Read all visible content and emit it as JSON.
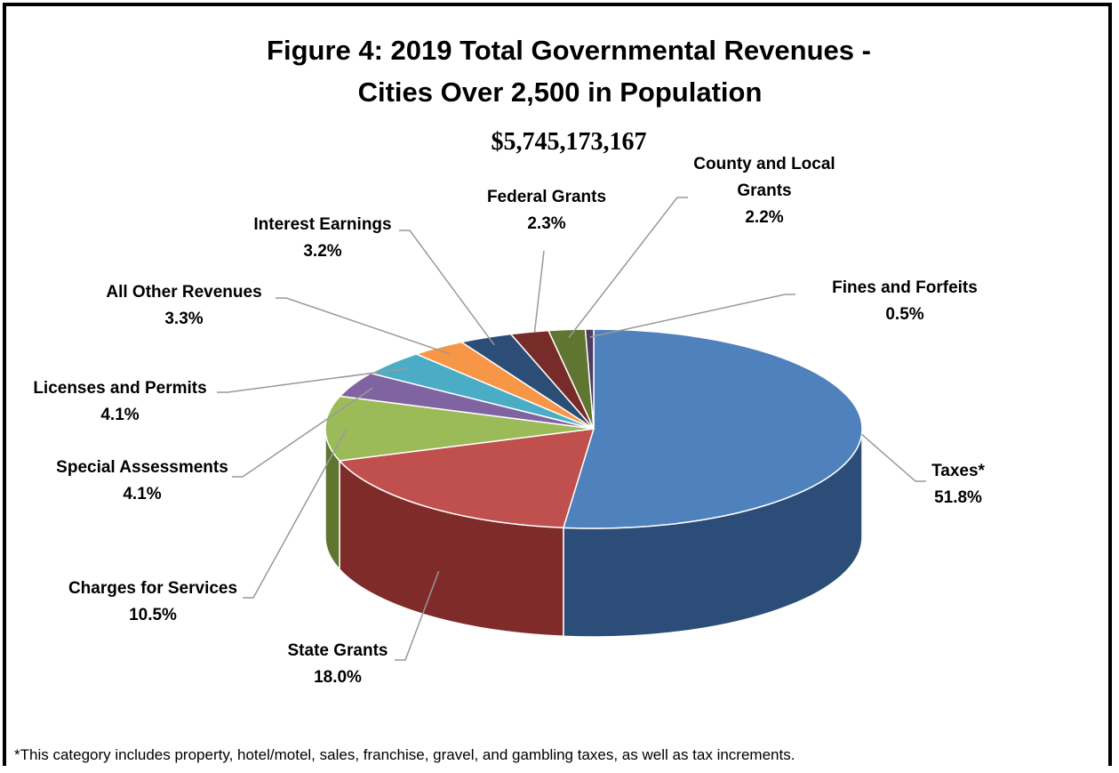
{
  "chart_data": {
    "type": "pie",
    "title_line1": "Figure 4:  2019 Total Governmental Revenues -",
    "title_line2": "Cities Over 2,500 in Population",
    "subtitle": "$5,745,173,167",
    "slices": [
      {
        "label": "Taxes*",
        "value_text": "51.8%",
        "value": 51.8,
        "color": "#4f81bd",
        "side": "#2b4d77"
      },
      {
        "label": "State Grants",
        "value_text": "18.0%",
        "value": 18.0,
        "color": "#c0504d",
        "side": "#7f2b29"
      },
      {
        "label": "Charges for Services",
        "value_text": "10.5%",
        "value": 10.5,
        "color": "#9bbb59",
        "side": "#5f7631"
      },
      {
        "label": "Special Assessments",
        "value_text": "4.1%",
        "value": 4.1,
        "color": "#8064a2",
        "side": "#4e3b66"
      },
      {
        "label": "Licenses and Permits",
        "value_text": "4.1%",
        "value": 4.1,
        "color": "#4bacc6",
        "side": "#2a6f82"
      },
      {
        "label": "All Other Revenues",
        "value_text": "3.3%",
        "value": 3.3,
        "color": "#f79646",
        "side": "#a8601f"
      },
      {
        "label": "Interest Earnings",
        "value_text": "3.2%",
        "value": 3.2,
        "color": "#2c4d75",
        "side": "#182c45"
      },
      {
        "label": "Federal Grants",
        "value_text": "2.3%",
        "value": 2.3,
        "color": "#772c2a",
        "side": "#4a1918"
      },
      {
        "label": "County and Local Grants",
        "label_lines": [
          "County and Local",
          "Grants"
        ],
        "value_text": "2.2%",
        "value": 2.2,
        "color": "#5f7530",
        "side": "#39471b"
      },
      {
        "label": "Fines and Forfeits",
        "value_text": "0.5%",
        "value": 0.5,
        "color": "#4d3b62",
        "side": "#2d2239"
      }
    ],
    "legend": "none",
    "footnote": "*This category includes property, hotel/motel, sales, franchise, gravel, and gambling taxes, as well as tax increments."
  }
}
